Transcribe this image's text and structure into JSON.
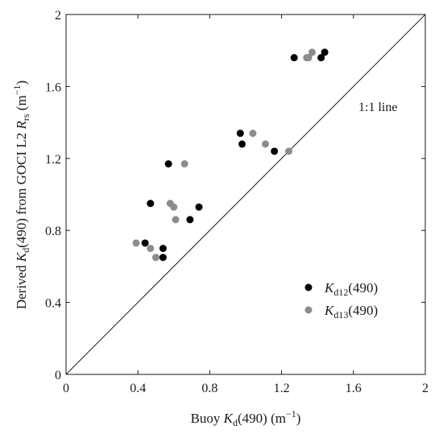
{
  "chart_data": {
    "type": "scatter",
    "xlabel": "Buoy Kd(490) (m−1)",
    "xlabel_parts": {
      "pre": "Buoy ",
      "var": "K",
      "sub": "d",
      "post": "(490) (m",
      "sup": "−1",
      "end": ")"
    },
    "ylabel": "Derived Kd(490) from GOCI L2 Rrs (m−1)",
    "ylabel_parts": {
      "pre": "Derived ",
      "var": "K",
      "sub": "d",
      "mid": "(490) from GOCI L2 ",
      "var2": "R",
      "sub2": "rs",
      "post": " (m",
      "sup": "−1",
      "end": ")"
    },
    "xlim": [
      0,
      2
    ],
    "ylim": [
      0,
      2
    ],
    "xticks": [
      "0",
      "0.4",
      "0.8",
      "1.2",
      "1.6",
      "2"
    ],
    "yticks": [
      "0",
      "0.4",
      "0.8",
      "1.2",
      "1.6",
      "2"
    ],
    "grid": false,
    "legend_position": "bottom-right",
    "annotation": {
      "text": "1:1 line"
    },
    "reference_line": {
      "from": [
        0,
        0
      ],
      "to": [
        2,
        2
      ]
    },
    "series": [
      {
        "name": "Kd12(490)",
        "label_parts": {
          "var": "K",
          "sub": "d12",
          "post": "(490)"
        },
        "color": "#000000",
        "points": [
          [
            0.44,
            0.73
          ],
          [
            0.47,
            0.95
          ],
          [
            0.54,
            0.65
          ],
          [
            0.54,
            0.7
          ],
          [
            0.57,
            1.17
          ],
          [
            0.69,
            0.86
          ],
          [
            0.74,
            0.93
          ],
          [
            0.97,
            1.34
          ],
          [
            0.98,
            1.28
          ],
          [
            1.16,
            1.24
          ],
          [
            1.27,
            1.76
          ],
          [
            1.42,
            1.76
          ],
          [
            1.44,
            1.79
          ]
        ]
      },
      {
        "name": "Kd13(490)",
        "label_parts": {
          "var": "K",
          "sub": "d13",
          "post": "(490)"
        },
        "color": "#8c8c8c",
        "points": [
          [
            0.39,
            0.73
          ],
          [
            0.47,
            0.7
          ],
          [
            0.5,
            0.65
          ],
          [
            0.58,
            0.95
          ],
          [
            0.6,
            0.93
          ],
          [
            0.61,
            0.86
          ],
          [
            0.66,
            1.17
          ],
          [
            1.04,
            1.34
          ],
          [
            1.11,
            1.28
          ],
          [
            1.24,
            1.24
          ],
          [
            1.34,
            1.76
          ],
          [
            1.35,
            1.76
          ],
          [
            1.37,
            1.79
          ]
        ]
      }
    ]
  }
}
